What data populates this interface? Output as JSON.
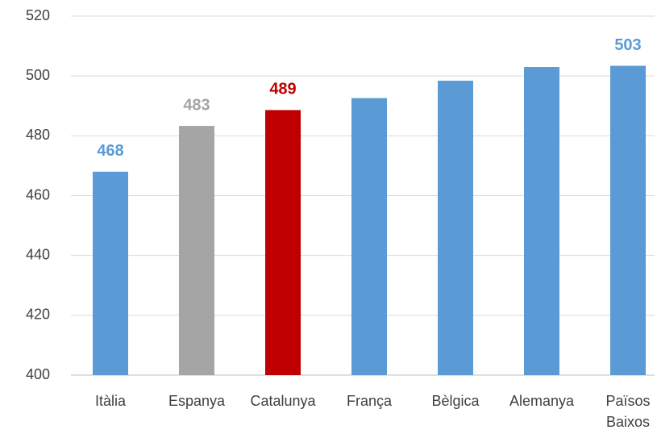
{
  "chart_data": {
    "type": "bar",
    "categories": [
      "Itàlia",
      "Espanya",
      "Catalunya",
      "França",
      "Bèlgica",
      "Alemanya",
      "Països Baixos"
    ],
    "values": [
      468,
      483.3,
      488.6,
      492.6,
      498.4,
      503.0,
      503.4
    ],
    "value_labels": [
      "468",
      "483",
      "489",
      null,
      null,
      null,
      "503"
    ],
    "colors": [
      "#5b9bd5",
      "#a5a5a5",
      "#c00000",
      "#5b9bd5",
      "#5b9bd5",
      "#5b9bd5",
      "#5b9bd5"
    ],
    "ylim": [
      400,
      520
    ],
    "yticks": [
      400,
      420,
      440,
      460,
      480,
      500,
      520
    ],
    "grid": true
  }
}
